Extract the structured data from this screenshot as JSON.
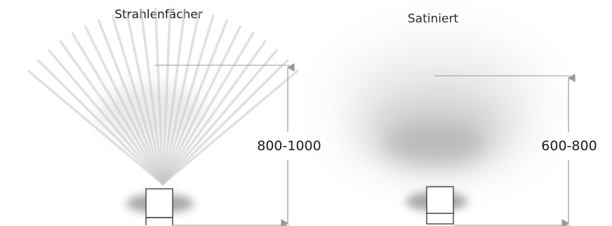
{
  "panels": [
    {
      "title": "Strahlenfächer",
      "dimension": "800-1000"
    },
    {
      "title": "Satiniert",
      "dimension": "600-800"
    }
  ],
  "colors": {
    "ray": "#c8c8c8",
    "glow": "#bdbdbd",
    "shadow": "#9a9a9a",
    "dimension_line": "#999999",
    "fixture_stroke": "#222222",
    "text": "#1a1a1a"
  }
}
